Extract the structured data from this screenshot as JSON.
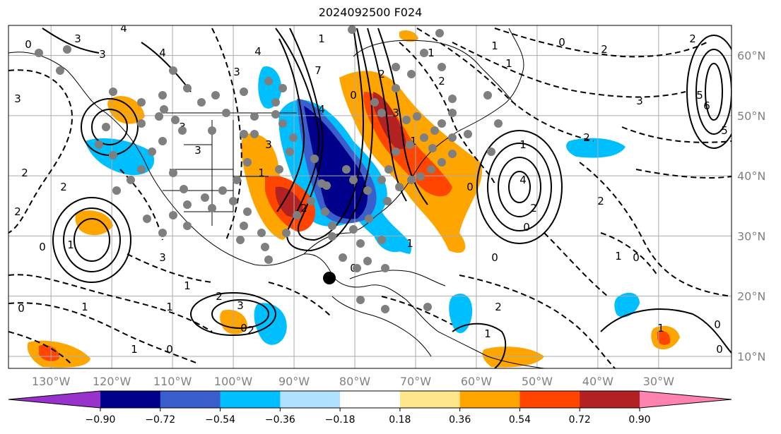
{
  "title": "2024092500 F024",
  "map": {
    "lon_range": [
      -137,
      -18
    ],
    "lat_range": [
      8,
      65
    ],
    "lon_ticks": [
      {
        "value": -130,
        "label": "130°W"
      },
      {
        "value": -120,
        "label": "120°W"
      },
      {
        "value": -110,
        "label": "110°W"
      },
      {
        "value": -100,
        "label": "100°W"
      },
      {
        "value": -90,
        "label": "90°W"
      },
      {
        "value": -80,
        "label": "80°W"
      },
      {
        "value": -70,
        "label": "70°W"
      },
      {
        "value": -60,
        "label": "60°W"
      },
      {
        "value": -50,
        "label": "50°W"
      },
      {
        "value": -40,
        "label": "40°W"
      },
      {
        "value": -30,
        "label": "30°W"
      }
    ],
    "lat_ticks": [
      {
        "value": 60,
        "label": "60°N"
      },
      {
        "value": 50,
        "label": "50°N"
      },
      {
        "value": 40,
        "label": "40°N"
      },
      {
        "value": 30,
        "label": "30°N"
      },
      {
        "value": 20,
        "label": "20°N"
      },
      {
        "value": 10,
        "label": "10°N"
      }
    ],
    "grid": true,
    "contour_labels": [
      "0",
      "1",
      "2",
      "3",
      "4",
      "5",
      "6",
      "7"
    ]
  },
  "colorbar": {
    "boundaries": [
      "−0.90",
      "−0.72",
      "−0.54",
      "−0.36",
      "−0.18",
      "0.18",
      "0.36",
      "0.54",
      "0.72",
      "0.90"
    ],
    "colors": [
      "#9932cc",
      "#00008b",
      "#3a5fcd",
      "#00bfff",
      "#b0e2ff",
      "#ffffff",
      "#ffe68a",
      "#ffa500",
      "#ff4500",
      "#b22222",
      "#ff83b0"
    ],
    "extend": "both"
  },
  "style": {
    "grid_color": "#aaaaaa",
    "station_color": "#7f7f7f",
    "storm_marker_color": "#000000"
  }
}
